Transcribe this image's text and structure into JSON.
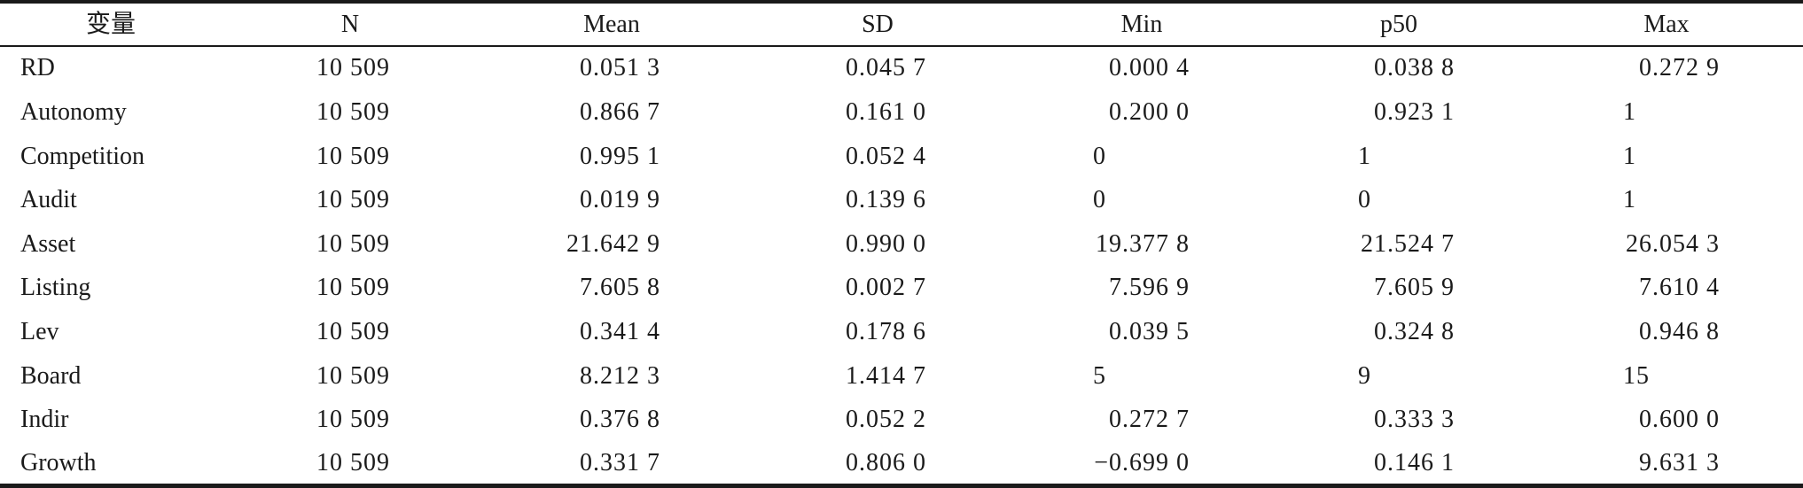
{
  "headers": {
    "var": "变量",
    "n": "N",
    "mean": "Mean",
    "sd": "SD",
    "min": "Min",
    "p50": "p50",
    "max": "Max"
  },
  "rows": [
    {
      "var": "RD",
      "n": "10 509",
      "mean": "0.051 3",
      "sd": "0.045 7",
      "min": "0.000 4",
      "p50": "0.038 8",
      "max": "0.272 9"
    },
    {
      "var": "Autonomy",
      "n": "10 509",
      "mean": "0.866 7",
      "sd": "0.161 0",
      "min": "0.200 0",
      "p50": "0.923 1",
      "max": "1"
    },
    {
      "var": "Competition",
      "n": "10 509",
      "mean": "0.995 1",
      "sd": "0.052 4",
      "min": "0",
      "p50": "1",
      "max": "1"
    },
    {
      "var": "Audit",
      "n": "10 509",
      "mean": "0.019 9",
      "sd": "0.139 6",
      "min": "0",
      "p50": "0",
      "max": "1"
    },
    {
      "var": "Asset",
      "n": "10 509",
      "mean": "21.642 9",
      "sd": "0.990 0",
      "min": "19.377 8",
      "p50": "21.524 7",
      "max": "26.054 3"
    },
    {
      "var": "Listing",
      "n": "10 509",
      "mean": "7.605 8",
      "sd": "0.002 7",
      "min": "7.596 9",
      "p50": "7.605 9",
      "max": "7.610 4"
    },
    {
      "var": "Lev",
      "n": "10 509",
      "mean": "0.341 4",
      "sd": "0.178 6",
      "min": "0.039 5",
      "p50": "0.324 8",
      "max": "0.946 8"
    },
    {
      "var": "Board",
      "n": "10 509",
      "mean": "8.212 3",
      "sd": "1.414 7",
      "min": "5",
      "p50": "9",
      "max": "15"
    },
    {
      "var": "Indir",
      "n": "10 509",
      "mean": "0.376 8",
      "sd": "0.052 2",
      "min": "0.272 7",
      "p50": "0.333 3",
      "max": "0.600 0"
    },
    {
      "var": "Growth",
      "n": "10 509",
      "mean": "0.331 7",
      "sd": "0.806 0",
      "min": "−0.699 0",
      "p50": "0.146 1",
      "max": "9.631 3"
    }
  ]
}
